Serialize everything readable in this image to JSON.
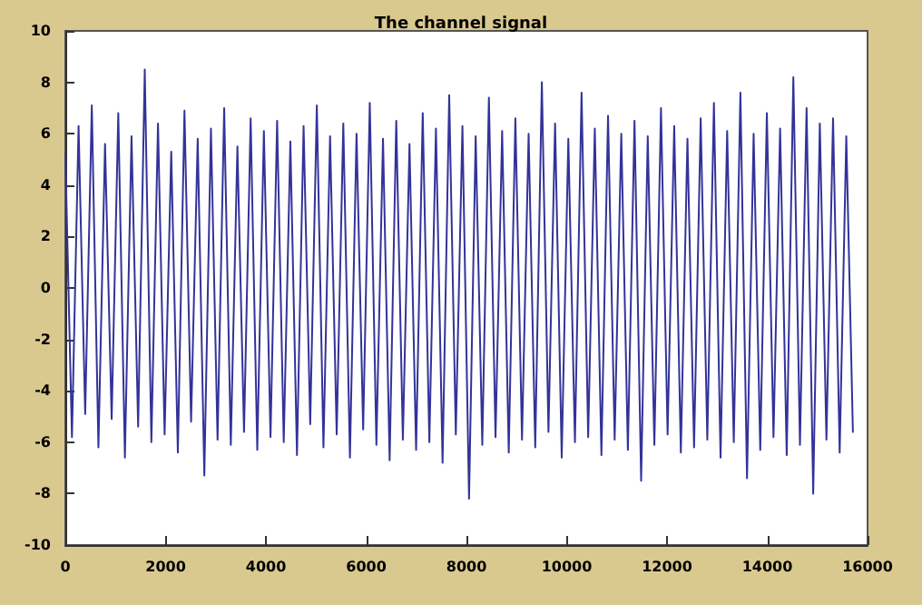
{
  "chart_data": {
    "type": "line",
    "title": "The channel signal",
    "x": [
      0,
      132,
      264,
      396,
      528,
      660,
      792,
      924,
      1056,
      1188,
      1320,
      1452,
      1584,
      1716,
      1848,
      1980,
      2112,
      2244,
      2376,
      2508,
      2640,
      2772,
      2904,
      3036,
      3168,
      3300,
      3432,
      3564,
      3696,
      3828,
      3960,
      4092,
      4224,
      4356,
      4488,
      4620,
      4752,
      4884,
      5016,
      5148,
      5280,
      5412,
      5544,
      5676,
      5808,
      5940,
      6072,
      6204,
      6336,
      6468,
      6600,
      6732,
      6864,
      6996,
      7128,
      7260,
      7392,
      7524,
      7656,
      7788,
      7920,
      8052,
      8184,
      8316,
      8448,
      8580,
      8712,
      8844,
      8976,
      9108,
      9240,
      9372,
      9504,
      9636,
      9768,
      9900,
      10032,
      10164,
      10296,
      10428,
      10560,
      10692,
      10824,
      10956,
      11088,
      11220,
      11352,
      11484,
      11616,
      11748,
      11880,
      12012,
      12144,
      12276,
      12408,
      12540,
      12672,
      12804,
      12936,
      13068,
      13200,
      13332,
      13464,
      13596,
      13728,
      13860,
      13992,
      14124,
      14256,
      14388,
      14520,
      14652,
      14784,
      14916,
      15048,
      15180,
      15312,
      15444,
      15576,
      15708
    ],
    "series": [
      {
        "color": "#333399",
        "values": [
          5.2,
          -5.8,
          6.3,
          -4.9,
          7.1,
          -6.2,
          5.6,
          -5.1,
          6.8,
          -6.6,
          5.9,
          -5.4,
          8.5,
          -6.0,
          6.4,
          -5.7,
          5.3,
          -6.4,
          6.9,
          -5.2,
          5.8,
          -7.3,
          6.2,
          -5.9,
          7.0,
          -6.1,
          5.5,
          -5.6,
          6.6,
          -6.3,
          6.1,
          -5.8,
          6.5,
          -6.0,
          5.7,
          -6.5,
          6.3,
          -5.3,
          7.1,
          -6.2,
          5.9,
          -5.7,
          6.4,
          -6.6,
          6.0,
          -5.5,
          7.2,
          -6.1,
          5.8,
          -6.7,
          6.5,
          -5.9,
          5.6,
          -6.3,
          6.8,
          -6.0,
          6.2,
          -6.8,
          7.5,
          -5.7,
          6.3,
          -8.2,
          5.9,
          -6.1,
          7.4,
          -5.8,
          6.1,
          -6.4,
          6.6,
          -5.9,
          6.0,
          -6.2,
          8.0,
          -5.6,
          6.4,
          -6.6,
          5.8,
          -6.0,
          7.6,
          -5.8,
          6.2,
          -6.5,
          6.7,
          -5.9,
          6.0,
          -6.3,
          6.5,
          -7.5,
          5.9,
          -6.1,
          7.0,
          -5.7,
          6.3,
          -6.4,
          5.8,
          -6.2,
          6.6,
          -5.9,
          7.2,
          -6.6,
          6.1,
          -6.0,
          7.6,
          -7.4,
          6.0,
          -6.3,
          6.8,
          -5.8,
          6.2,
          -6.5,
          8.2,
          -6.1,
          7.0,
          -8.0,
          6.4,
          -5.9,
          6.6,
          -6.4,
          5.9,
          -5.6
        ]
      }
    ],
    "xlim": [
      0,
      16000
    ],
    "xticks": [
      0,
      2000,
      4000,
      6000,
      8000,
      10000,
      12000,
      14000,
      16000
    ],
    "ylim": [
      -10,
      10
    ],
    "yticks": [
      -10,
      -8,
      -6,
      -4,
      -2,
      0,
      2,
      4,
      6,
      8,
      10
    ],
    "grid": false,
    "marker": "none",
    "line_style": "solid"
  }
}
